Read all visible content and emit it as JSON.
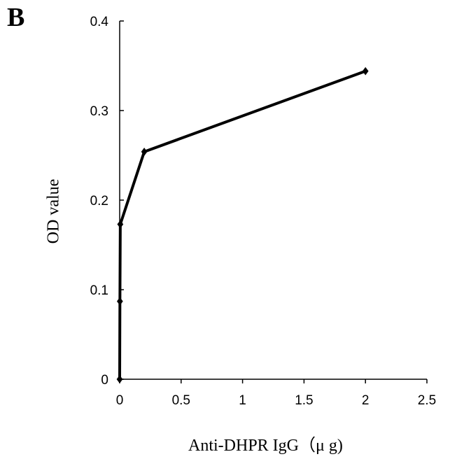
{
  "panel_label": "B",
  "chart_data": {
    "type": "line",
    "title": "",
    "xlabel": "Anti-DHPR IgG（μ g)",
    "ylabel": "OD value",
    "xlim": [
      0,
      2.5
    ],
    "ylim": [
      0,
      0.4
    ],
    "x_ticks": [
      "0",
      "0.5",
      "1",
      "1.5",
      "2",
      "2.5"
    ],
    "y_ticks": [
      "0",
      "0.1",
      "0.2",
      "0.3",
      "0.4"
    ],
    "series": [
      {
        "x": [
          0,
          0.002,
          0.005,
          0.2,
          2
        ],
        "y": [
          0.0,
          0.087,
          0.173,
          0.254,
          0.344
        ]
      }
    ],
    "grid": false,
    "legend": "none",
    "colors": {
      "line": "#000000",
      "marker": "#000000",
      "axis": "#000000"
    }
  }
}
